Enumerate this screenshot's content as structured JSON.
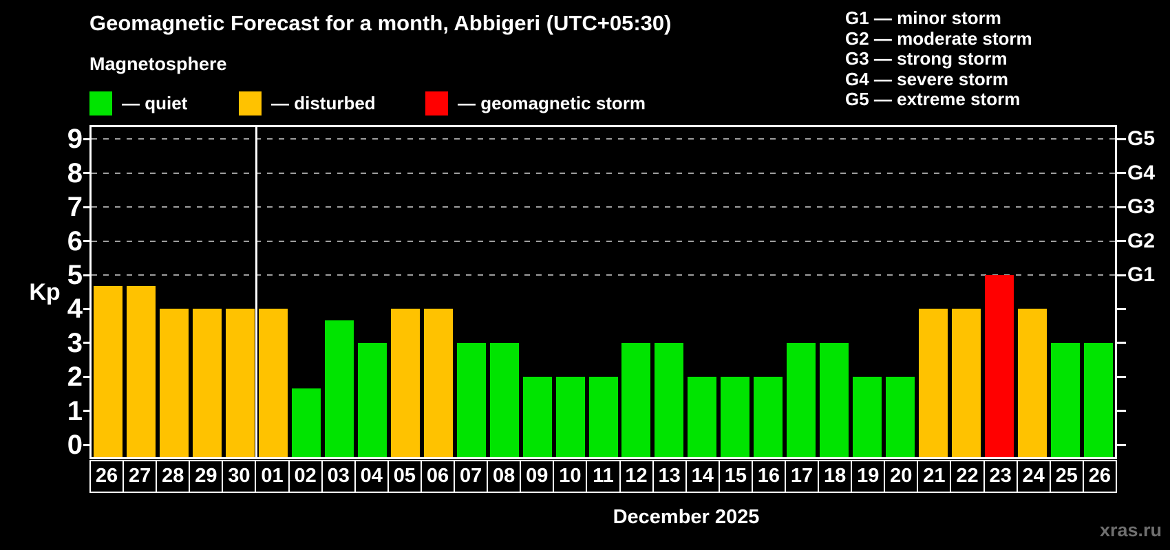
{
  "title": "Geomagnetic Forecast for a month, Abbigeri (UTC+05:30)",
  "subtitle": "Magnetosphere",
  "legend": {
    "quiet": "— quiet",
    "disturbed": "— disturbed",
    "storm": "— geomagnetic storm"
  },
  "g_legend": [
    "G1 — minor storm",
    "G2 — moderate storm",
    "G3 — strong storm",
    "G4 — severe storm",
    "G5 — extreme storm"
  ],
  "axis": {
    "y_label": "Kp",
    "y_ticks": [
      0,
      1,
      2,
      3,
      4,
      5,
      6,
      7,
      8,
      9
    ],
    "g_ticks": [
      {
        "label": "G1",
        "value": 5
      },
      {
        "label": "G2",
        "value": 6
      },
      {
        "label": "G3",
        "value": 7
      },
      {
        "label": "G4",
        "value": 8
      },
      {
        "label": "G5",
        "value": 9
      }
    ],
    "x_label": "December 2025"
  },
  "watermark": "xras.ru",
  "colors": {
    "background": "#000000",
    "text": "#ffffff",
    "quiet": "#00e400",
    "disturbed": "#ffc200",
    "storm": "#ff0000",
    "grid": "#9f9f9f",
    "frame": "#ffffff",
    "watermark": "#6f6f6f"
  },
  "chart_data": {
    "type": "bar",
    "title": "Geomagnetic Forecast for a month, Abbigeri (UTC+05:30)",
    "xlabel": "December 2025",
    "ylabel": "Kp",
    "ylim": [
      0,
      9.4
    ],
    "grid": "dashed horizontal at Kp 5-9",
    "gridlines_at": [
      5,
      6,
      7,
      8,
      9
    ],
    "month_separator_after_index": 4,
    "categories": [
      "26",
      "27",
      "28",
      "29",
      "30",
      "01",
      "02",
      "03",
      "04",
      "05",
      "06",
      "07",
      "08",
      "09",
      "10",
      "11",
      "12",
      "13",
      "14",
      "15",
      "16",
      "17",
      "18",
      "19",
      "20",
      "21",
      "22",
      "23",
      "24",
      "25",
      "26"
    ],
    "values": [
      4.67,
      4.67,
      4,
      4,
      4,
      4,
      1.67,
      3.67,
      3,
      4,
      4,
      3,
      3,
      2,
      2,
      2,
      3,
      3,
      2,
      2,
      2,
      3,
      3,
      2,
      2,
      4,
      4,
      5,
      4,
      3,
      3
    ],
    "statuses": [
      "disturbed",
      "disturbed",
      "disturbed",
      "disturbed",
      "disturbed",
      "disturbed",
      "quiet",
      "quiet",
      "quiet",
      "disturbed",
      "disturbed",
      "quiet",
      "quiet",
      "quiet",
      "quiet",
      "quiet",
      "quiet",
      "quiet",
      "quiet",
      "quiet",
      "quiet",
      "quiet",
      "quiet",
      "quiet",
      "quiet",
      "disturbed",
      "disturbed",
      "storm",
      "disturbed",
      "quiet",
      "quiet"
    ]
  }
}
